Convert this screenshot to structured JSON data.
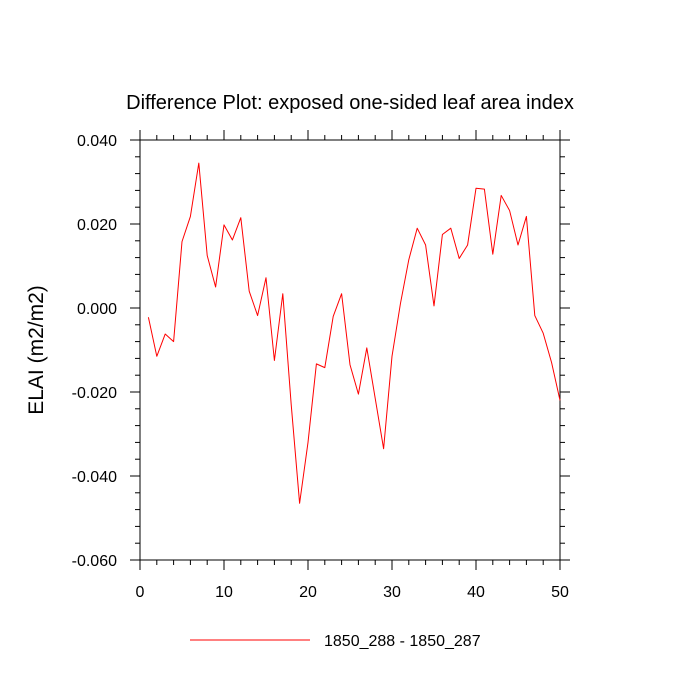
{
  "chart_data": {
    "type": "line",
    "title": "Difference Plot: exposed one-sided leaf area index",
    "xlabel": "",
    "ylabel": "ELAI  (m2/m2)",
    "xlim": [
      0,
      50
    ],
    "ylim": [
      -0.06,
      0.04
    ],
    "x_ticks": [
      0,
      10,
      20,
      30,
      40,
      50
    ],
    "x_tick_labels": [
      "0",
      "10",
      "20",
      "30",
      "40",
      "50"
    ],
    "y_ticks": [
      -0.06,
      -0.04,
      -0.02,
      0.0,
      0.02,
      0.04
    ],
    "y_tick_labels": [
      "-0.060",
      "-0.040",
      "-0.020",
      "0.000",
      "0.020",
      "0.040"
    ],
    "legend_position": "bottom",
    "series": [
      {
        "name": "1850_288 - 1850_287",
        "color": "#ff0000",
        "x": [
          1,
          2,
          3,
          4,
          5,
          6,
          7,
          8,
          9,
          10,
          11,
          12,
          13,
          14,
          15,
          16,
          17,
          18,
          19,
          20,
          21,
          22,
          23,
          24,
          25,
          26,
          27,
          28,
          29,
          30,
          31,
          32,
          33,
          34,
          35,
          36,
          37,
          38,
          39,
          40,
          41,
          42,
          43,
          44,
          45,
          46,
          47,
          48,
          49,
          50
        ],
        "values": [
          -0.0022,
          -0.0115,
          -0.0062,
          -0.008,
          0.0158,
          0.0218,
          0.0345,
          0.0125,
          0.005,
          0.0198,
          0.0162,
          0.0215,
          0.004,
          -0.0018,
          0.0072,
          -0.0125,
          0.0034,
          -0.023,
          -0.0465,
          -0.032,
          -0.0133,
          -0.0142,
          -0.002,
          0.0034,
          -0.0135,
          -0.0205,
          -0.0095,
          -0.0215,
          -0.0335,
          -0.0115,
          0.001,
          0.0115,
          0.019,
          0.015,
          0.0005,
          0.0175,
          0.019,
          0.0118,
          0.015,
          0.0285,
          0.0283,
          0.0128,
          0.0268,
          0.0232,
          0.015,
          0.0218,
          -0.0018,
          -0.006,
          -0.013,
          -0.022
        ]
      }
    ]
  }
}
